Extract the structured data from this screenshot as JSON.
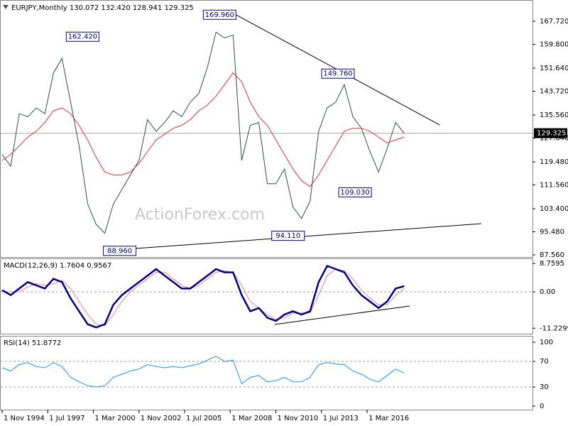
{
  "chart_data": [
    {
      "type": "line",
      "title": "EURJPY,Monthly  130.072 132.420 128.941 129.325",
      "watermark": "ActionForex.com",
      "x": [
        "1994-11",
        "1995-05",
        "1995-11",
        "1996-05",
        "1996-11",
        "1997-05",
        "1997-11",
        "1998-05",
        "1998-11",
        "1999-05",
        "1999-11",
        "2000-05",
        "2000-11",
        "2001-05",
        "2001-11",
        "2002-05",
        "2002-11",
        "2003-05",
        "2003-11",
        "2004-05",
        "2004-11",
        "2005-05",
        "2005-11",
        "2006-05",
        "2006-11",
        "2007-05",
        "2007-11",
        "2008-05",
        "2008-11",
        "2009-05",
        "2009-11",
        "2010-05",
        "2010-11",
        "2011-05",
        "2011-11",
        "2012-05",
        "2012-11",
        "2013-05",
        "2013-11",
        "2014-05",
        "2014-11",
        "2015-05",
        "2015-11",
        "2016-05",
        "2016-11",
        "2017-05",
        "2017-11",
        "2018-05"
      ],
      "series": [
        {
          "color": "#2f4f4f",
          "values": [
            122,
            118,
            136,
            135,
            138,
            136,
            150,
            155,
            140,
            125,
            105,
            98,
            95,
            105,
            110,
            115,
            120,
            134,
            130,
            133,
            137,
            135,
            140,
            143,
            152,
            164,
            162,
            163,
            120,
            132,
            133,
            112,
            112,
            117,
            104,
            100,
            106,
            130,
            138,
            140,
            146,
            135,
            131,
            123,
            116,
            124,
            133,
            129.325
          ]
        },
        {
          "color": "#e8322e",
          "values": [
            120,
            122,
            125,
            128,
            130,
            133,
            137,
            138,
            136,
            132,
            127,
            121,
            116,
            115,
            115,
            116,
            119,
            123,
            127,
            129,
            131,
            132,
            134,
            137,
            139,
            142,
            146,
            150,
            147,
            140,
            135,
            132,
            127,
            122,
            117,
            113,
            111,
            115,
            120,
            125,
            130,
            131,
            131,
            130,
            128,
            126,
            127,
            128
          ]
        }
      ],
      "last_price": 129.325,
      "annotations": [
        {
          "x": "1998-08",
          "value": 162.42,
          "label": "162.420"
        },
        {
          "x": "2008-07",
          "value": 169.96,
          "label": "169.960"
        },
        {
          "x": "2015-06",
          "value": 149.76,
          "label": "149.760"
        },
        {
          "x": "2016-06",
          "value": 109.03,
          "label": "109.030"
        },
        {
          "x": "2012-07",
          "value": 94.11,
          "label": "94.110"
        },
        {
          "x": "2000-10",
          "value": 88.96,
          "label": "88.960"
        }
      ],
      "trendlines": [
        {
          "x": [
            "2008-07",
            "2020-06"
          ],
          "y": [
            169.96,
            132.14
          ]
        },
        {
          "x": [
            "2000-10",
            "2022-11"
          ],
          "y": [
            88.96,
            98.28
          ]
        }
      ],
      "xlim": [
        "1994-10",
        "2025-11"
      ],
      "ylim": [
        86.83,
        174.54
      ],
      "yticks": [
        {
          "value": 167.72,
          "label": "167.720"
        },
        {
          "value": 159.8,
          "label": "159.800"
        },
        {
          "value": 151.64,
          "label": "151.640"
        },
        {
          "value": 143.72,
          "label": "143.720"
        },
        {
          "value": 135.56,
          "label": "135.560"
        },
        {
          "value": 127.64,
          "label": "127.640"
        },
        {
          "value": 119.48,
          "label": "119.480"
        },
        {
          "value": 111.56,
          "label": "111.560"
        },
        {
          "value": 103.4,
          "label": "103.400"
        },
        {
          "value": 95.48,
          "label": "95.480"
        },
        {
          "value": 87.56,
          "label": "87.560"
        }
      ]
    },
    {
      "type": "line",
      "title": "MACD(12,26,9) 1.7604 0.9567",
      "x": [
        "1994-11",
        "1995-05",
        "1995-11",
        "1996-05",
        "1996-11",
        "1997-05",
        "1997-11",
        "1998-05",
        "1998-11",
        "1999-05",
        "1999-11",
        "2000-05",
        "2000-11",
        "2001-05",
        "2001-11",
        "2002-05",
        "2002-11",
        "2003-05",
        "2003-11",
        "2004-05",
        "2004-11",
        "2005-05",
        "2005-11",
        "2006-05",
        "2006-11",
        "2007-05",
        "2007-11",
        "2008-05",
        "2008-11",
        "2009-05",
        "2009-11",
        "2010-05",
        "2010-11",
        "2011-05",
        "2011-11",
        "2012-05",
        "2012-11",
        "2013-05",
        "2013-11",
        "2014-05",
        "2014-11",
        "2015-05",
        "2015-11",
        "2016-05",
        "2016-11",
        "2017-05",
        "2017-11",
        "2018-05"
      ],
      "series": [
        {
          "color": "#f08080",
          "values": [
            0,
            0,
            0,
            1.5,
            2.5,
            2,
            2.5,
            3.5,
            1,
            -3,
            -7,
            -10,
            -10.5,
            -7,
            -3,
            0,
            2,
            4,
            6,
            6,
            4,
            2,
            1,
            2,
            4,
            6,
            6.5,
            6,
            2,
            -3,
            -5,
            -7,
            -8.5,
            -8,
            -6.5,
            -6.5,
            -6.5,
            -1,
            5,
            7,
            6.5,
            4,
            0.5,
            -2,
            -4,
            -4,
            -1,
            0.9567
          ]
        },
        {
          "color": "#00008b",
          "values": [
            0.5,
            -1,
            1,
            3,
            2,
            1,
            4,
            3,
            -2,
            -6,
            -10,
            -11,
            -10,
            -4,
            -1,
            1,
            3,
            5,
            7,
            5,
            3,
            1,
            1,
            3,
            5,
            7,
            6,
            6,
            -1,
            -6,
            -5,
            -8,
            -9,
            -7,
            -6,
            -7,
            -6,
            3,
            8,
            7,
            6,
            2,
            -1,
            -3,
            -5,
            -3,
            1,
            1.7604
          ]
        }
      ],
      "trendlines": [
        {
          "x": [
            "2010-10",
            "2018-09"
          ],
          "y": [
            -10.07,
            -4.38
          ]
        }
      ],
      "levels": [
        0
      ],
      "xlim": [
        "1994-10",
        "2025-11"
      ],
      "ylim": [
        -12.92,
        10.07
      ],
      "yticks": [
        8.7595,
        {
          "value": 0,
          "label": "0.00"
        },
        -11.2299
      ]
    },
    {
      "type": "line",
      "title": "RSI(14) 51.8772",
      "x": [
        "1994-11",
        "1995-05",
        "1995-11",
        "1996-05",
        "1996-11",
        "1997-05",
        "1997-11",
        "1998-05",
        "1998-11",
        "1999-05",
        "1999-11",
        "2000-05",
        "2000-11",
        "2001-05",
        "2001-11",
        "2002-05",
        "2002-11",
        "2003-05",
        "2003-11",
        "2004-05",
        "2004-11",
        "2005-05",
        "2005-11",
        "2006-05",
        "2006-11",
        "2007-05",
        "2007-11",
        "2008-05",
        "2008-11",
        "2009-05",
        "2009-11",
        "2010-05",
        "2010-11",
        "2011-05",
        "2011-11",
        "2012-05",
        "2012-11",
        "2013-05",
        "2013-11",
        "2014-05",
        "2014-11",
        "2015-05",
        "2015-11",
        "2016-05",
        "2016-11",
        "2017-05",
        "2017-11",
        "2018-05"
      ],
      "series": [
        {
          "color": "#1e90ff",
          "values": [
            60,
            55,
            65,
            68,
            62,
            60,
            68,
            62,
            45,
            38,
            32,
            30,
            32,
            45,
            50,
            55,
            58,
            65,
            62,
            60,
            62,
            60,
            63,
            66,
            72,
            78,
            70,
            72,
            35,
            45,
            48,
            38,
            40,
            45,
            38,
            38,
            45,
            65,
            68,
            66,
            65,
            55,
            50,
            42,
            38,
            48,
            58,
            51.8772
          ]
        }
      ],
      "levels": [
        70,
        30
      ],
      "xlim": [
        "1994-10",
        "2025-11"
      ],
      "ylim": [
        -5.56,
        108.9
      ],
      "yticks": [
        100,
        70,
        30,
        0
      ],
      "xticks": [
        {
          "value": "1994-11",
          "label": "1 Nov 1994"
        },
        {
          "value": "1997-07",
          "label": "1 Jul 1997"
        },
        {
          "value": "2000-03",
          "label": "1 Mar 2000"
        },
        {
          "value": "2002-11",
          "label": "1 Nov 2002"
        },
        {
          "value": "2005-07",
          "label": "1 Jul 2005"
        },
        {
          "value": "2008-03",
          "label": "1 Mar 2008"
        },
        {
          "value": "2010-11",
          "label": "1 Nov 2010"
        },
        {
          "value": "2013-07",
          "label": "1 Jul 2013"
        },
        {
          "value": "2016-03",
          "label": "1 Mar 2016"
        }
      ]
    }
  ]
}
